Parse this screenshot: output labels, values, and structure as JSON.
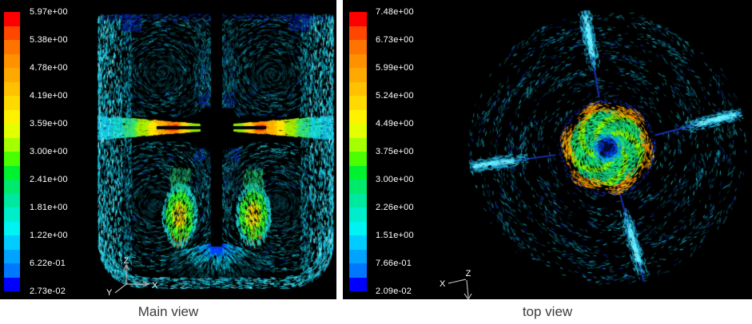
{
  "panels": {
    "main": {
      "caption": "Main view",
      "legend_labels": [
        "5.97e+00",
        "5.38e+00",
        "4.78e+00",
        "4.19e+00",
        "3.59e+00",
        "3.00e+00",
        "2.41e+00",
        "1.81e+00",
        "1.22e+00",
        "6.22e-01",
        "2.73e-02"
      ],
      "triad": {
        "up": "Z",
        "right": "X",
        "diag": "Y"
      }
    },
    "top": {
      "caption": "top view",
      "legend_labels": [
        "7.48e+00",
        "6.73e+00",
        "5.99e+00",
        "5.24e+00",
        "4.49e+00",
        "3.75e+00",
        "3.00e+00",
        "2.26e+00",
        "1.51e+00",
        "7.66e-01",
        "2.09e-02"
      ],
      "triad": {
        "x": "X",
        "z": "Z"
      }
    }
  },
  "colors": {
    "panel_background": "#000000",
    "caption_text": "#3b3b3b",
    "legend_text": "#ffffff",
    "colormap": [
      "#ff0000",
      "#ff4700",
      "#ff7300",
      "#ff9000",
      "#ffa800",
      "#ffc100",
      "#ffd900",
      "#fff200",
      "#e4ff00",
      "#a4ff00",
      "#4bff00",
      "#00f12d",
      "#00e96d",
      "#00e8a0",
      "#00edcc",
      "#00f3f3",
      "#00ccff",
      "#00a4ff",
      "#0077ff",
      "#0000ff"
    ]
  },
  "chart_data": [
    {
      "type": "heatmap",
      "subtype": "velocity-vector-field",
      "title": "Main view",
      "view": "side cross-section of baffled stirred tank with central shaft, radial impeller jet and bottom plume",
      "legend_levels": [
        5.97,
        5.38,
        4.78,
        4.19,
        3.59,
        3.0,
        2.41,
        1.81,
        1.22,
        0.622,
        0.0273
      ],
      "legend_labels": [
        "5.97e+00",
        "5.38e+00",
        "4.78e+00",
        "4.19e+00",
        "3.59e+00",
        "3.00e+00",
        "2.41e+00",
        "1.81e+00",
        "1.22e+00",
        "6.22e-01",
        "2.73e-02"
      ],
      "value_min": 0.0273,
      "value_max": 5.97,
      "colormap": "jet, 20 discrete bands, red (max) to blue (min)",
      "legend_position": "left",
      "axis_triad": [
        "Z up",
        "X right",
        "Y oblique"
      ]
    },
    {
      "type": "heatmap",
      "subtype": "velocity-vector-field",
      "title": "top view",
      "view": "top view of stirred tank: swirling annulus, four baffle wakes, impeller disk with vortex core",
      "legend_levels": [
        7.48,
        6.73,
        5.99,
        5.24,
        4.49,
        3.75,
        3.0,
        2.26,
        1.51,
        0.766,
        0.0209
      ],
      "legend_labels": [
        "7.48e+00",
        "6.73e+00",
        "5.99e+00",
        "5.24e+00",
        "4.49e+00",
        "3.75e+00",
        "3.00e+00",
        "2.26e+00",
        "1.51e+00",
        "7.66e-01",
        "2.09e-02"
      ],
      "value_min": 0.0209,
      "value_max": 7.48,
      "colormap": "jet, 20 discrete bands, red (max) to blue (min)",
      "legend_position": "left",
      "axis_triad": [
        "X oblique",
        "Z center",
        "arrow down"
      ]
    }
  ]
}
